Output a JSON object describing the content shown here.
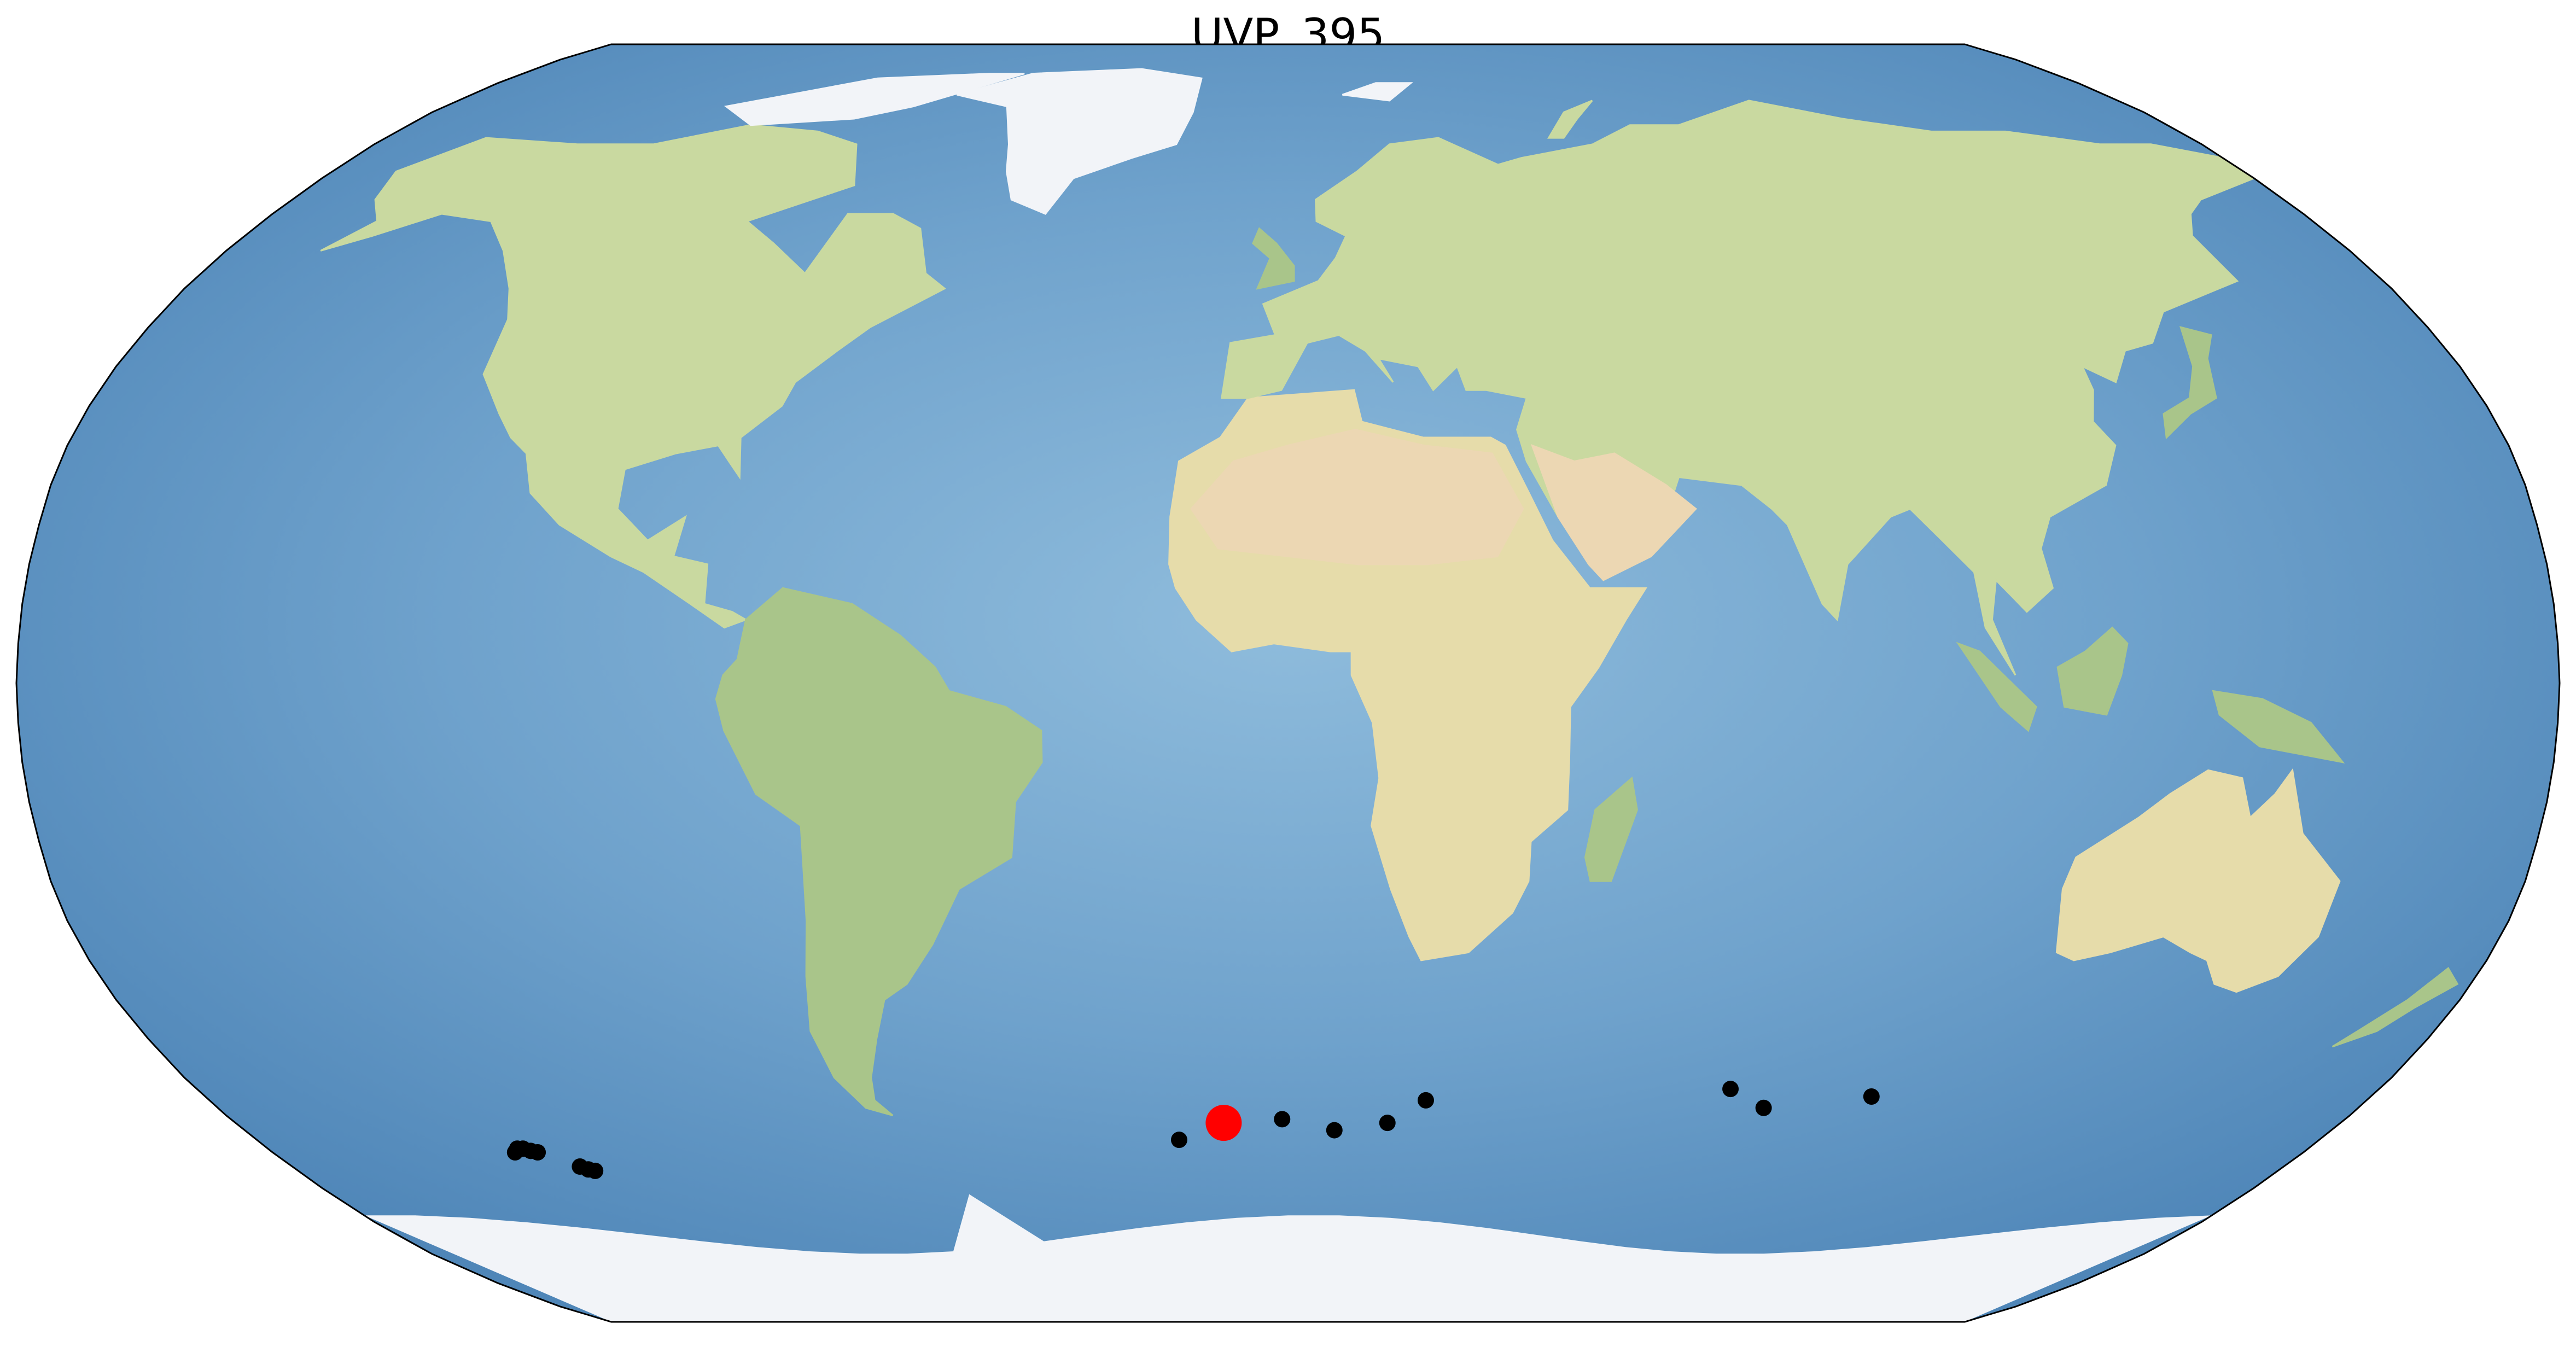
{
  "title": "UVP_395",
  "map": {
    "projection": "robinson",
    "background": "natural-earth-shaded-relief",
    "colors": {
      "ocean_light": "#8fbcdc",
      "ocean_mid": "#6fa2cc",
      "ocean_deep": "#4f86b8",
      "land_lowland": "#c9d9a0",
      "land_green": "#a9c58a",
      "land_arid": "#e6dcaa",
      "land_desert": "#ecd7b3",
      "ice": "#f2f4f8",
      "outline": "#000000",
      "current_marker": "#ff0000",
      "other_marker": "#000000"
    }
  },
  "markers": {
    "current": {
      "lon": -11,
      "lat": -56
    },
    "others": [
      {
        "lon": -137,
        "lat": -60
      },
      {
        "lon": -136,
        "lat": -59.5
      },
      {
        "lon": -135,
        "lat": -59.5
      },
      {
        "lon": -134,
        "lat": -59.8
      },
      {
        "lon": -133,
        "lat": -60
      },
      {
        "lon": -128,
        "lat": -62
      },
      {
        "lon": -127,
        "lat": -62.4
      },
      {
        "lon": -126,
        "lat": -62.6
      },
      {
        "lon": -19,
        "lat": -58.3
      },
      {
        "lon": -1,
        "lat": -55.5
      },
      {
        "lon": 8,
        "lat": -57
      },
      {
        "lon": 17,
        "lat": -56
      },
      {
        "lon": 23,
        "lat": -53
      },
      {
        "lon": 73,
        "lat": -51.5
      },
      {
        "lon": 80,
        "lat": -54
      },
      {
        "lon": 97,
        "lat": -52.5
      }
    ]
  }
}
